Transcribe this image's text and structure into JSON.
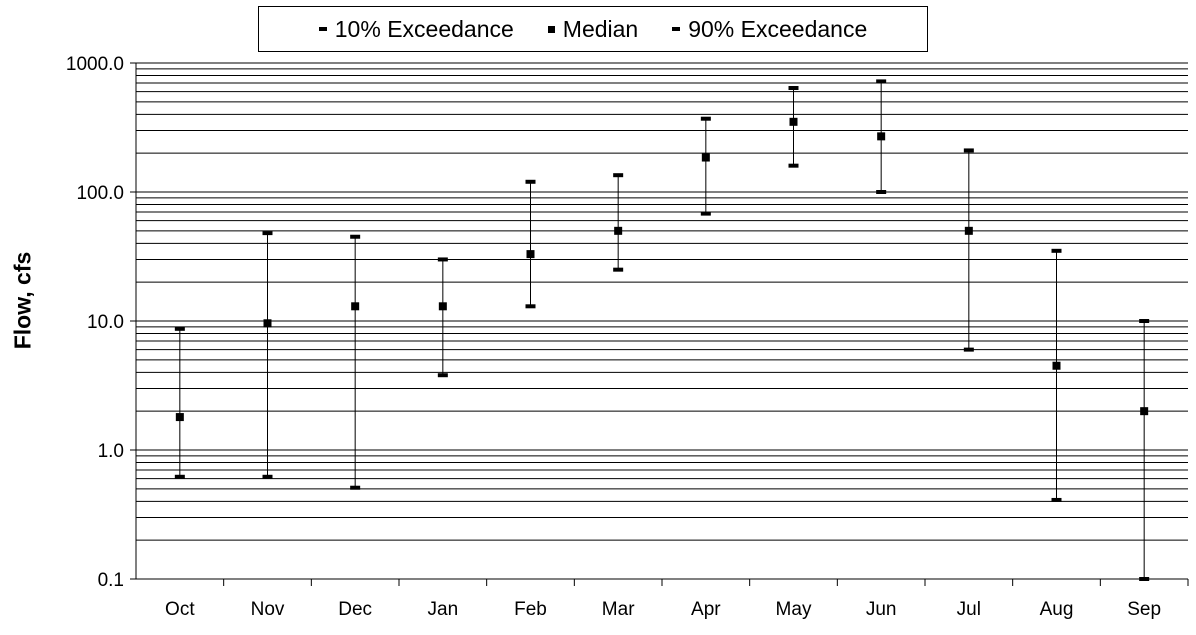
{
  "legend": {
    "items": [
      {
        "label": "10% Exceedance",
        "marker": "dash"
      },
      {
        "label": "Median",
        "marker": "square"
      },
      {
        "label": "90% Exceedance",
        "marker": "dash"
      }
    ]
  },
  "chart_data": {
    "type": "scatter",
    "title": "",
    "xlabel": "",
    "ylabel": "Flow, cfs",
    "yscale": "log",
    "ylim": [
      0.1,
      1000
    ],
    "yticks": [
      "0.1",
      "1.0",
      "10.0",
      "100.0",
      "1000.0"
    ],
    "grid": "horizontal, minor log gridlines",
    "legend_position": "top-center",
    "categories": [
      "Oct",
      "Nov",
      "Dec",
      "Jan",
      "Feb",
      "Mar",
      "Apr",
      "May",
      "Jun",
      "Jul",
      "Aug",
      "Sep"
    ],
    "series": [
      {
        "name": "10% Exceedance",
        "marker": "dash",
        "values": [
          8.7,
          48,
          45,
          30,
          120,
          135,
          370,
          640,
          720,
          210,
          35,
          10
        ]
      },
      {
        "name": "Median",
        "marker": "square",
        "values": [
          1.8,
          9.6,
          13,
          13,
          33,
          50,
          185,
          350,
          270,
          50,
          4.5,
          2.0
        ]
      },
      {
        "name": "90% Exceedance",
        "marker": "dash",
        "values": [
          0.62,
          0.62,
          0.51,
          3.8,
          13,
          25,
          68,
          160,
          100,
          6.0,
          0.41,
          0.1
        ]
      }
    ],
    "error_bars": "vertical line connecting 90% and 10% exceedance for each month",
    "colors": {
      "marker": "#000000",
      "grid": "#000000",
      "axis": "#000000"
    }
  }
}
